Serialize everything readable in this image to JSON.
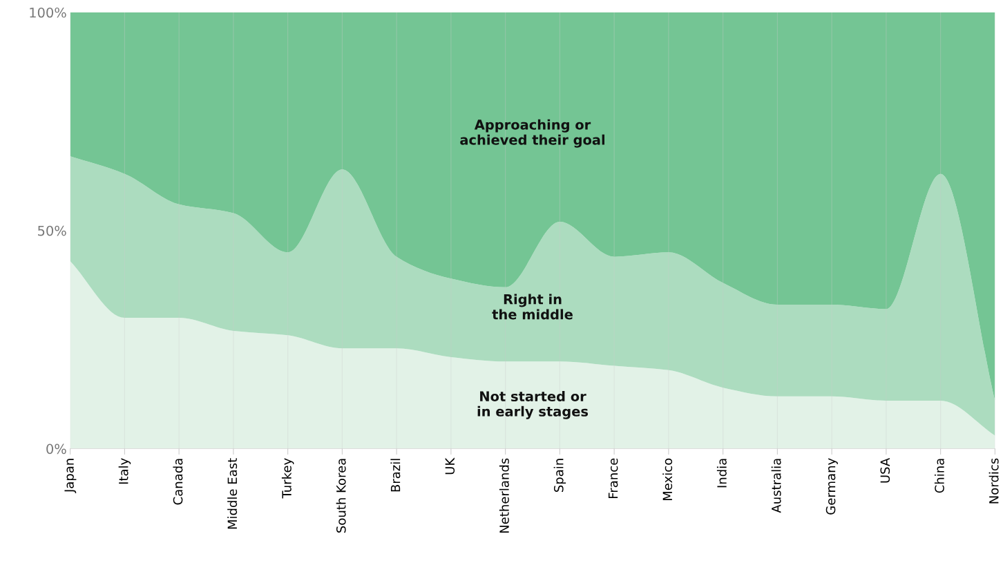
{
  "chart_data": {
    "type": "area",
    "stacked": true,
    "categories": [
      "Japan",
      "Italy",
      "Canada",
      "Middle East",
      "Turkey",
      "South Korea",
      "Brazil",
      "UK",
      "Netherlands",
      "Spain",
      "France",
      "Mexico",
      "India",
      "Australia",
      "Germany",
      "USA",
      "China",
      "Nordics"
    ],
    "series": [
      {
        "name": "Not started or\nin early stages",
        "color": "#e2f2e7",
        "values": [
          43,
          30,
          30,
          27,
          26,
          23,
          23,
          21,
          20,
          20,
          19,
          18,
          14,
          12,
          12,
          11,
          11,
          3
        ]
      },
      {
        "name": "Right in\nthe middle",
        "color": "#acdcbf",
        "values": [
          24,
          33,
          26,
          27,
          19,
          41,
          21,
          18,
          17,
          32,
          25,
          27,
          24,
          21,
          21,
          21,
          52,
          8
        ]
      },
      {
        "name": "Approaching or\nachieved their goal",
        "color": "#74c594",
        "values": [
          33,
          37,
          44,
          46,
          55,
          36,
          56,
          61,
          63,
          48,
          56,
          55,
          62,
          67,
          67,
          68,
          37,
          89
        ]
      }
    ],
    "ylim": [
      0,
      100
    ],
    "yticks": [
      {
        "value": 0,
        "label": "0%"
      },
      {
        "value": 50,
        "label": "50%"
      },
      {
        "value": 100,
        "label": "100%"
      }
    ],
    "grid": "x",
    "legend": false
  }
}
